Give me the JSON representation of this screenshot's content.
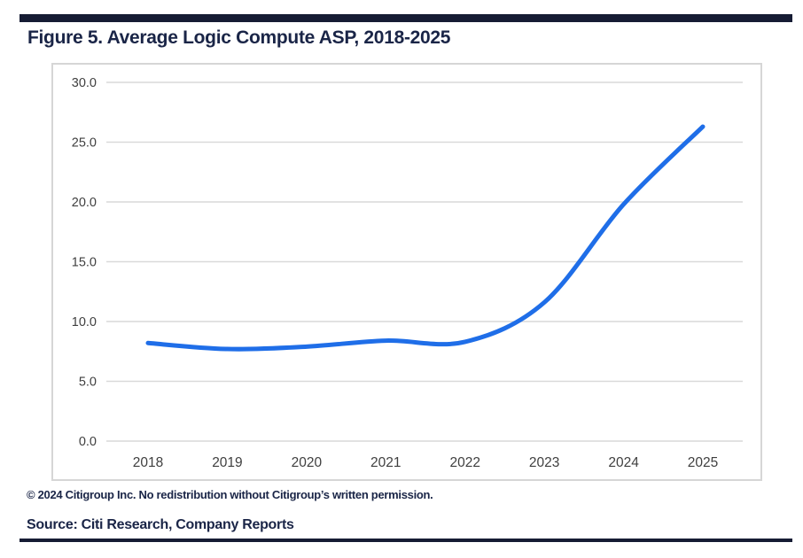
{
  "page": {
    "title": "Figure 5. Average Logic Compute ASP, 2018-2025",
    "copyright": "© 2024 Citigroup Inc. No redistribution without Citigroup’s written permission.",
    "source": "Source: Citi Research, Company Reports"
  },
  "colors": {
    "accent_bar": "#161c34",
    "heading_text": "#1a2547",
    "line_blue": "#1f6ee8",
    "gridline": "#d9d9d9",
    "chart_border": "#d6d6d6",
    "tick_text": "#3f3f3f"
  },
  "chart_data": {
    "type": "line",
    "title": "Average Logic Compute ASP, 2018-2025",
    "categories": [
      "2018",
      "2019",
      "2020",
      "2021",
      "2022",
      "2023",
      "2024",
      "2025"
    ],
    "series": [
      {
        "name": "Average Logic Compute ASP",
        "values": [
          8.2,
          7.7,
          7.9,
          8.4,
          8.3,
          11.6,
          19.8,
          26.3
        ]
      }
    ],
    "xlabel": "",
    "ylabel": "",
    "ylim": [
      0,
      30
    ],
    "ytick_interval": 5,
    "ytick_labels": [
      "0.0",
      "5.0",
      "10.0",
      "15.0",
      "20.0",
      "25.0",
      "30.0"
    ],
    "grid": "horizontal",
    "legend": "none",
    "line_style": "smoothed"
  }
}
